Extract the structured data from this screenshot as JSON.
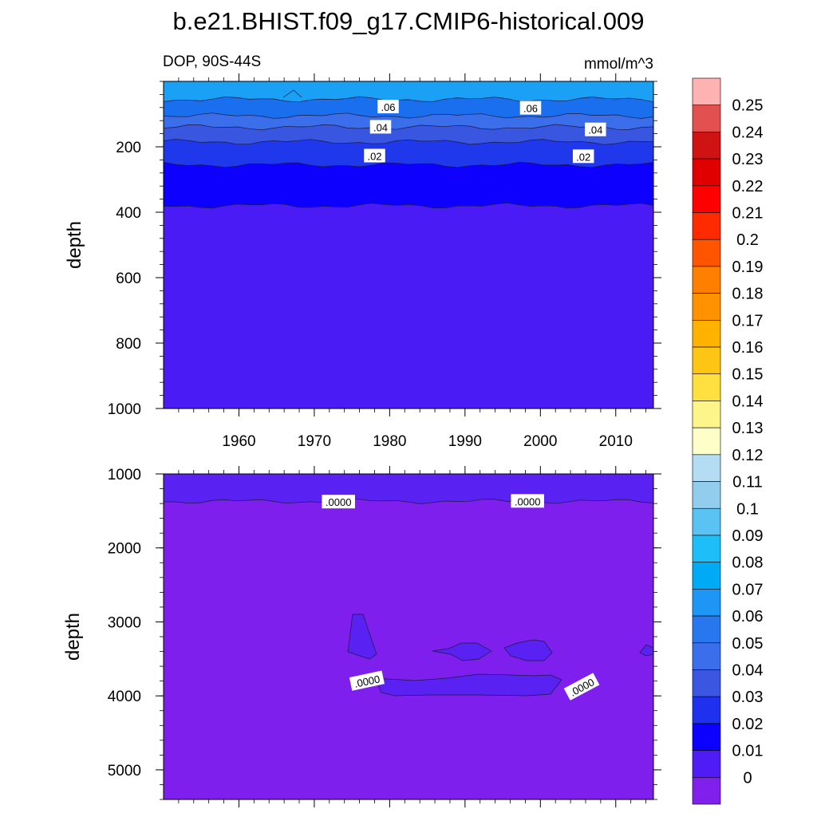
{
  "title": "b.e21.BHIST.f09_g17.CMIP6-historical.009",
  "variable_label": "DOP, 90S-44S",
  "units_label": "mmol/m^3",
  "chart_data": [
    {
      "type": "contour",
      "panel": "upper",
      "ylabel": "depth",
      "y_axis_reversed": true,
      "xlim": [
        1950,
        2015
      ],
      "ylim": [
        0,
        1000
      ],
      "x_ticks": [
        "1960",
        "1970",
        "1980",
        "1990",
        "2000",
        "2010"
      ],
      "y_ticks": [
        "200",
        "400",
        "600",
        "800",
        "1000"
      ],
      "contour_levels": [
        0.06,
        0.05,
        0.04,
        0.03,
        0.02,
        0.01
      ],
      "level_colors": [
        "#1a6fef",
        "#3a6eea",
        "#3856e0",
        "#1f38ec",
        "#0d00ff",
        "#4a1bf5"
      ],
      "surface_color": "#1aa0f5",
      "contour_depths": [
        {
          "level": 0.06,
          "depth": 55
        },
        {
          "level": 0.05,
          "depth": 105
        },
        {
          "level": 0.04,
          "depth": 140
        },
        {
          "level": 0.03,
          "depth": 185
        },
        {
          "level": 0.02,
          "depth": 255
        },
        {
          "level": 0.01,
          "depth": 380
        }
      ],
      "contour_labels": [
        {
          "text": ".06",
          "x": 1979.8,
          "y": 78
        },
        {
          "text": ".06",
          "x": 1998.7,
          "y": 82
        },
        {
          "text": ".04",
          "x": 1978.8,
          "y": 140
        },
        {
          "text": ".04",
          "x": 2007.3,
          "y": 148
        },
        {
          "text": ".02",
          "x": 1978.0,
          "y": 228
        },
        {
          "text": ".02",
          "x": 2005.7,
          "y": 230
        }
      ]
    },
    {
      "type": "contour",
      "panel": "lower",
      "ylabel": "depth",
      "y_axis_reversed": true,
      "xlim": [
        1950,
        2015
      ],
      "ylim": [
        1000,
        5400
      ],
      "x_ticks": [
        "",
        "",
        "",
        "",
        "",
        ""
      ],
      "y_ticks": [
        "1000",
        "2000",
        "3000",
        "4000",
        "5000"
      ],
      "background_color": "#7f1fed",
      "band_color": "#5a22f2",
      "boundary_depth": 1370,
      "contour_labels": [
        {
          "text": ".0000",
          "x": 1973.2,
          "y": 1380
        },
        {
          "text": ".0000",
          "x": 1998.3,
          "y": 1370
        },
        {
          "text": ".0000",
          "x": 1977.0,
          "y": 3800
        },
        {
          "text": ".0000",
          "x": 2005.5,
          "y": 3880
        }
      ]
    }
  ],
  "colorbar": {
    "labels": [
      "0.25",
      "0.24",
      "0.23",
      "0.22",
      "0.21",
      "0.2",
      "0.19",
      "0.18",
      "0.17",
      "0.16",
      "0.15",
      "0.14",
      "0.13",
      "0.12",
      "0.11",
      "0.1",
      "0.09",
      "0.08",
      "0.07",
      "0.06",
      "0.05",
      "0.04",
      "0.03",
      "0.02",
      "0.01",
      "0"
    ],
    "colors": [
      "#feb2b2",
      "#e35050",
      "#cf1313",
      "#e00000",
      "#fe0000",
      "#ff2a00",
      "#ff5500",
      "#ff7f00",
      "#ff9200",
      "#ffb200",
      "#ffc515",
      "#ffe040",
      "#fef58a",
      "#fefec8",
      "#b4dcf3",
      "#92cdee",
      "#5ac3f3",
      "#1ebef8",
      "#00aaf5",
      "#1e96f5",
      "#2877ee",
      "#3b6eea",
      "#3b56e0",
      "#1f31ee",
      "#0c00fe",
      "#4f1cf6",
      "#8120ec"
    ]
  }
}
